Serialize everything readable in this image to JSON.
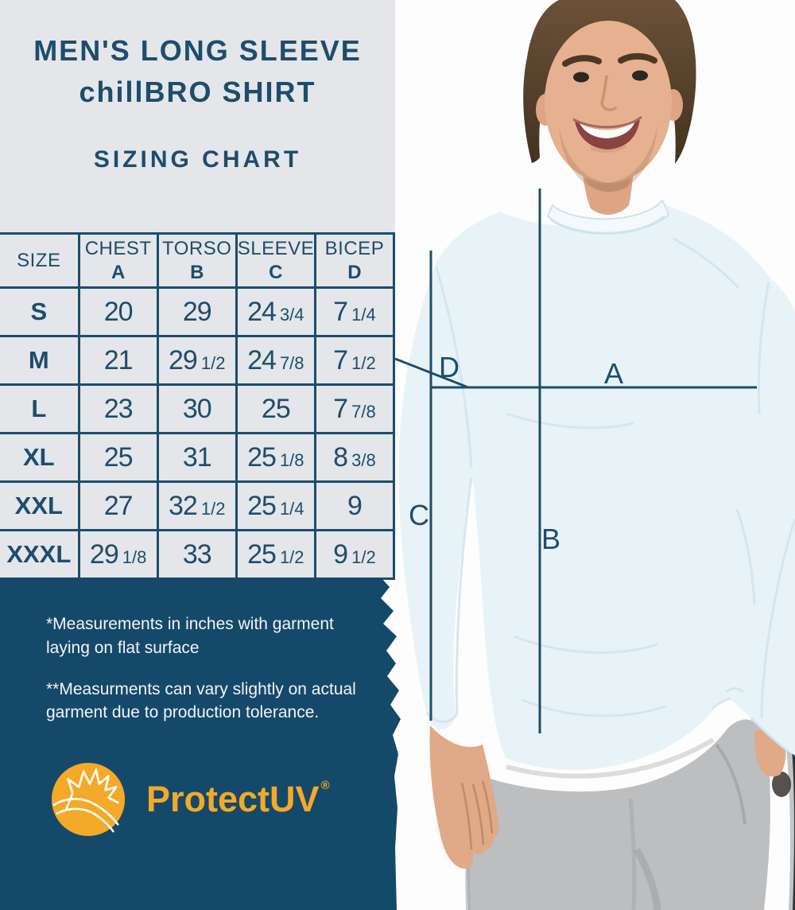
{
  "header": {
    "title_line1": "MEN'S LONG SLEEVE",
    "title_line2": "chillBRO SHIRT",
    "subtitle": "SIZING CHART"
  },
  "table": {
    "columns": [
      {
        "label": "SIZE",
        "letter": ""
      },
      {
        "label": "CHEST",
        "letter": "A"
      },
      {
        "label": "TORSO",
        "letter": "B"
      },
      {
        "label": "SLEEVE",
        "letter": "C"
      },
      {
        "label": "BICEP",
        "letter": "D"
      }
    ],
    "rows": [
      {
        "size": "S",
        "chest": "20",
        "torso": "29",
        "sleeve": "24 3/4",
        "bicep": "7 1/4"
      },
      {
        "size": "M",
        "chest": "21",
        "torso": "29 1/2",
        "sleeve": "24 7/8",
        "bicep": "7 1/2"
      },
      {
        "size": "L",
        "chest": "23",
        "torso": "30",
        "sleeve": "25",
        "bicep": "7 7/8"
      },
      {
        "size": "XL",
        "chest": "25",
        "torso": "31",
        "sleeve": "25 1/8",
        "bicep": "8 3/8"
      },
      {
        "size": "XXL",
        "chest": "27",
        "torso": "32 1/2",
        "sleeve": "25 1/4",
        "bicep": "9"
      },
      {
        "size": "XXXL",
        "chest": "29 1/8",
        "torso": "33",
        "sleeve": "25 1/2",
        "bicep": "9 1/2"
      }
    ]
  },
  "notes": {
    "note1": "*Measurements in inches with garment laying on flat surface",
    "note2": "**Measurments can vary slightly on actual garment due to production tolerance."
  },
  "brand": {
    "name": "ProtectUV",
    "registered": "®"
  },
  "photo": {
    "labels": {
      "a": "A",
      "b": "B",
      "c": "C",
      "d": "D"
    }
  },
  "colors": {
    "accent-navy": "#1d4d6d",
    "panel-navy": "#15496a",
    "light-gray": "#e4e6e9",
    "logo-yellow": "#f4a928",
    "shirt-blue": "#e8f3f8",
    "note-white": "#f2f4f6"
  },
  "chart_data": {
    "type": "table",
    "title": "SIZING CHART",
    "subtitle": "MEN'S LONG SLEEVE chillBRO SHIRT",
    "units": "inches",
    "columns": [
      "SIZE",
      "CHEST A",
      "TORSO B",
      "SLEEVE C",
      "BICEP D"
    ],
    "rows": [
      [
        "S",
        "20",
        "29",
        "24 3/4",
        "7 1/4"
      ],
      [
        "M",
        "21",
        "29 1/2",
        "24 7/8",
        "7 1/2"
      ],
      [
        "L",
        "23",
        "30",
        "25",
        "7 7/8"
      ],
      [
        "XL",
        "25",
        "31",
        "25 1/8",
        "8 3/8"
      ],
      [
        "XXL",
        "27",
        "32 1/2",
        "25 1/4",
        "9"
      ],
      [
        "XXXL",
        "29 1/8",
        "33",
        "25 1/2",
        "9 1/2"
      ]
    ]
  }
}
